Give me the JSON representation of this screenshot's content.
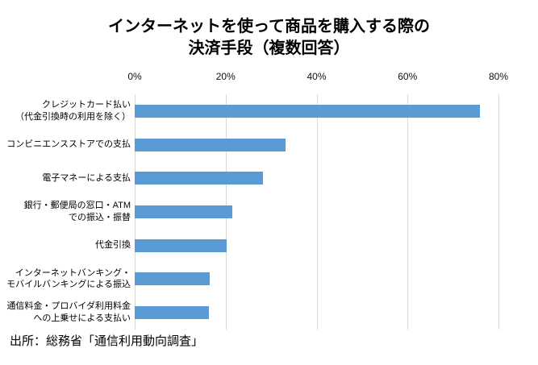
{
  "chart_data": {
    "type": "bar",
    "orientation": "horizontal",
    "title_lines": [
      "インターネットを使って商品を購入する際の",
      "決済手段（複数回答）"
    ],
    "title": "インターネットを使って商品を購入する際の決済手段（複数回答）",
    "categories": [
      "クレジットカード払い（代金引換時の利用を除く）",
      "コンビニエンスストアでの支払",
      "電子マネーによる支払",
      "銀行・郵便局の窓口・ATMでの振込・振替",
      "代金引換",
      "インターネットバンキング・モバイルバンキングによる振込",
      "通信料金・プロバイダ利用料金への上乗せによる支払い"
    ],
    "category_lines": [
      [
        "クレジットカード払い",
        "（代金引換時の利用を除く）"
      ],
      [
        "コンビニエンスストアでの支払"
      ],
      [
        "電子マネーによる支払"
      ],
      [
        "銀行・郵便局の窓口・ATM",
        "での振込・振替"
      ],
      [
        "代金引換"
      ],
      [
        "インターネットバンキング・",
        "モバイルバンキングによる振込"
      ],
      [
        "通信料金・プロバイダ利用料金",
        "への上乗せによる支払い"
      ]
    ],
    "values": [
      75.9,
      33.1,
      28.2,
      21.5,
      20.3,
      16.5,
      16.3
    ],
    "unit": "%",
    "xlim": [
      0,
      80
    ],
    "x_ticks": [
      "0%",
      "20%",
      "40%",
      "60%",
      "80%"
    ],
    "tick_values": [
      0,
      20,
      40,
      60,
      80
    ],
    "grid": true,
    "legend": false,
    "bar_color": "#5B9BD5",
    "gridline_color": "#D9D9D9",
    "source": "出所：総務省「通信利用動向調査」"
  }
}
